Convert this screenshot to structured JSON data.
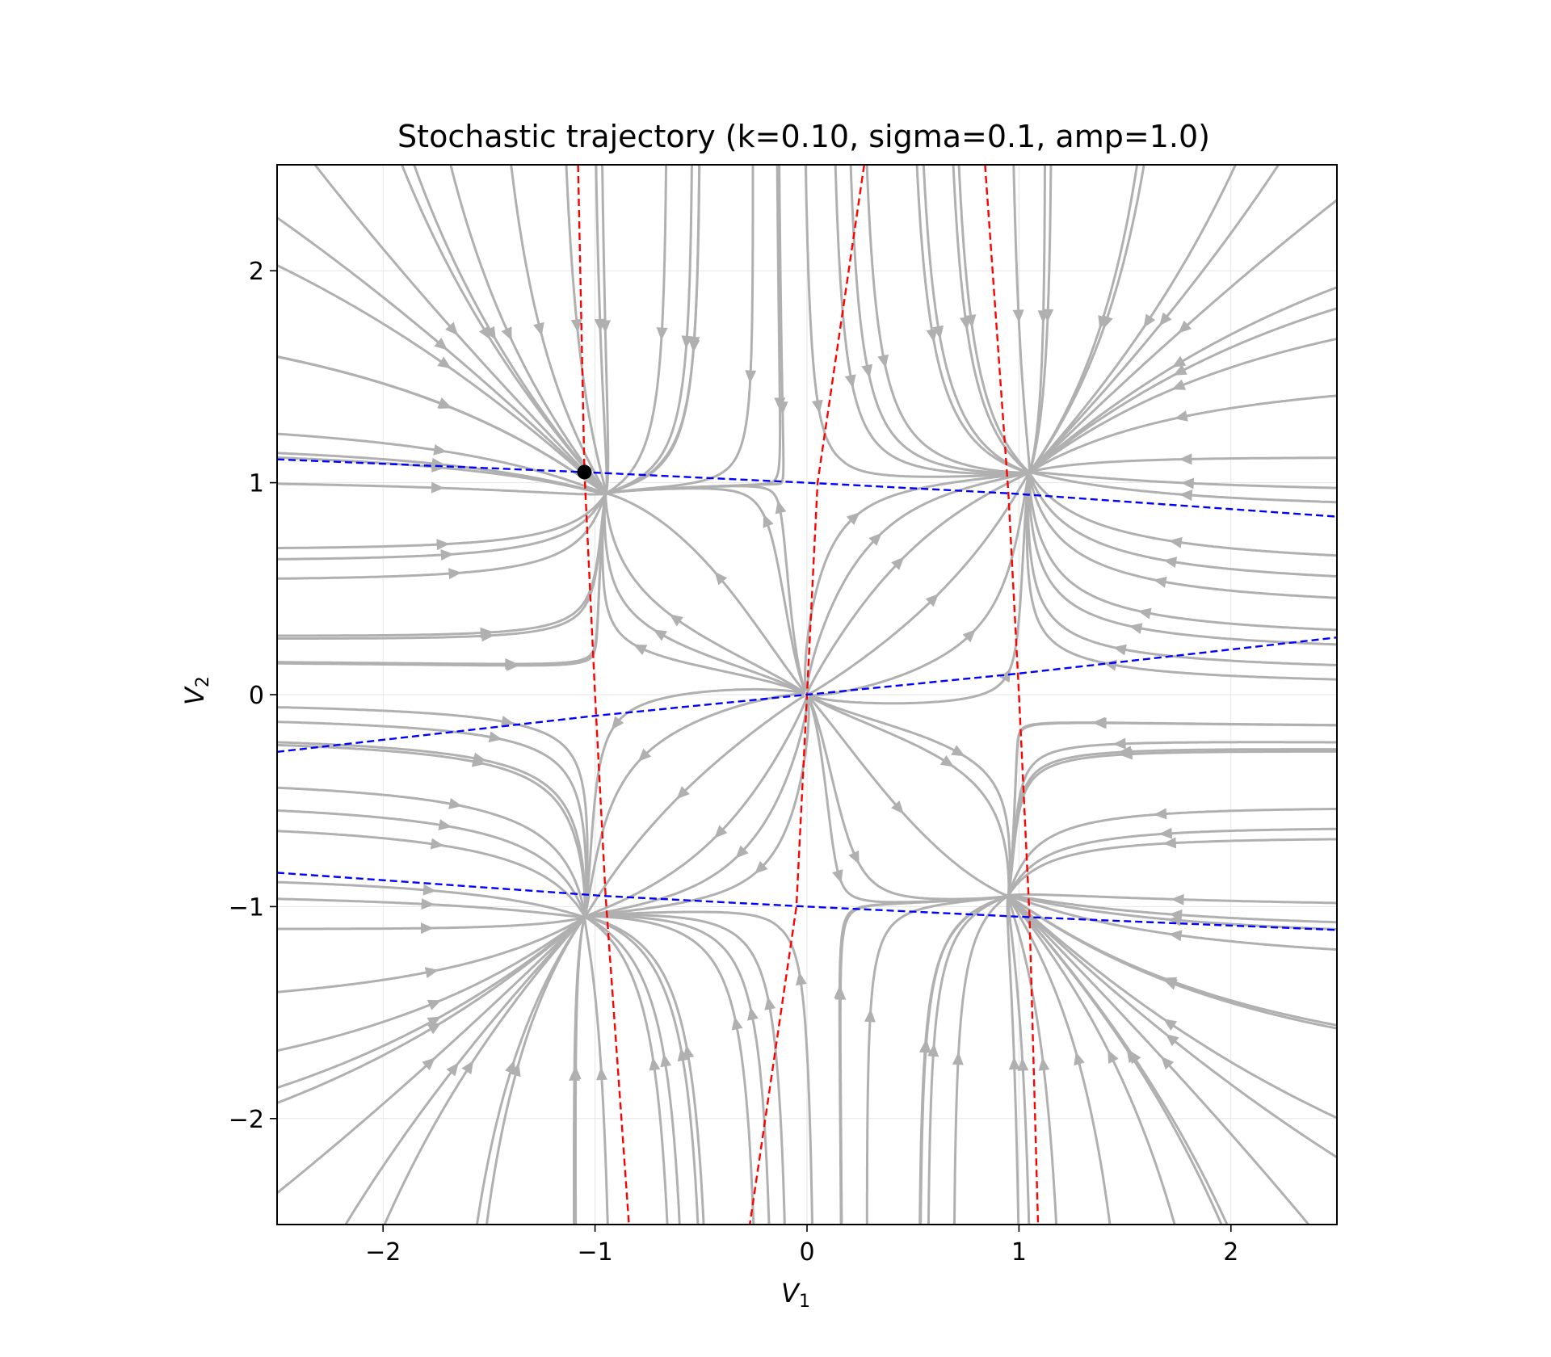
{
  "chart_data": {
    "type": "line",
    "title": "Stochastic trajectory (k=0.10, sigma=0.1, amp=1.0)",
    "xlabel": "V",
    "xlabel_sub": "1",
    "ylabel": "V",
    "ylabel_sub": "2",
    "xlim": [
      -2.5,
      2.5
    ],
    "ylim": [
      -2.5,
      2.5
    ],
    "xticks": [
      -2,
      -1,
      0,
      1,
      2
    ],
    "yticks": [
      -2,
      -1,
      0,
      1,
      2
    ],
    "xtick_labels": [
      "−2",
      "−1",
      "0",
      "1",
      "2"
    ],
    "ytick_labels": [
      "−2",
      "−1",
      "0",
      "1",
      "2"
    ],
    "grid": true,
    "vector_field": {
      "description": "streamplot",
      "dV1": "-V1^3 + V1 + k*V2",
      "dV2": "-V2^3 + V2 + k*V1",
      "k": 0.1,
      "color": "#b0b0b0"
    },
    "series": [
      {
        "style": "dashed",
        "color": "#ff0000",
        "points": [
          [
            -1.08,
            2.5
          ],
          [
            -1.05,
            1.05
          ],
          [
            -1.0,
            0.0
          ],
          [
            -0.95,
            -0.95
          ],
          [
            -0.84,
            -2.5
          ]
        ]
      },
      {
        "style": "dashed",
        "color": "#ff0000",
        "points": [
          [
            0.27,
            2.5
          ],
          [
            0.05,
            1.0
          ],
          [
            0.0,
            0.0
          ],
          [
            -0.05,
            -1.0
          ],
          [
            -0.27,
            -2.5
          ]
        ]
      },
      {
        "style": "dashed",
        "color": "#ff0000",
        "points": [
          [
            0.84,
            2.5
          ],
          [
            0.95,
            0.95
          ],
          [
            1.0,
            0.0
          ],
          [
            1.05,
            -1.05
          ],
          [
            1.09,
            -2.5
          ]
        ]
      },
      {
        "style": "dashed",
        "color": "#0000ff",
        "points": [
          [
            -2.5,
            1.11
          ],
          [
            -1.05,
            1.05
          ],
          [
            0.0,
            1.0
          ],
          [
            0.95,
            0.95
          ],
          [
            2.5,
            0.84
          ]
        ]
      },
      {
        "style": "dashed",
        "color": "#0000ff",
        "points": [
          [
            -2.5,
            -0.27
          ],
          [
            -1.0,
            -0.1
          ],
          [
            0.0,
            0.0
          ],
          [
            1.0,
            0.1
          ],
          [
            2.5,
            0.27
          ]
        ]
      },
      {
        "style": "dashed",
        "color": "#0000ff",
        "points": [
          [
            -2.5,
            -0.84
          ],
          [
            -0.95,
            -0.95
          ],
          [
            0.0,
            -1.0
          ],
          [
            1.05,
            -1.05
          ],
          [
            2.5,
            -1.11
          ]
        ]
      }
    ],
    "markers": [
      {
        "x": -1.05,
        "y": 1.05,
        "color": "#000000"
      }
    ]
  }
}
